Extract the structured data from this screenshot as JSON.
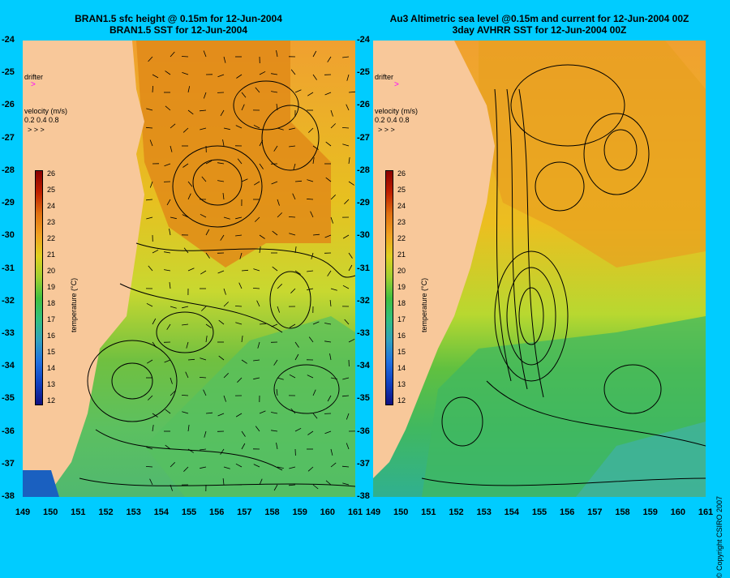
{
  "left": {
    "title1": "BRAN1.5 sfc height @ 0.15m for 12-Jun-2004",
    "title2": "BRAN1.5 SST for 12-Jun-2004"
  },
  "right": {
    "title1": "Au3 Altimetric sea level  @0.15m and current for 12-Jun-2004 00Z",
    "title2": "3day AVHRR SST for 12-Jun-2004 00Z"
  },
  "legend": {
    "drifter": "drifter",
    "velocity": "velocity (m/s)",
    "velocity_scale": "0.2 0.4 0.8",
    "temperature": "temperature (°C)"
  },
  "colorbar_ticks": [
    "26",
    "25",
    "24",
    "23",
    "22",
    "21",
    "20",
    "19",
    "18",
    "17",
    "16",
    "15",
    "14",
    "13",
    "12"
  ],
  "lat_ticks": [
    "-24",
    "-25",
    "-26",
    "-27",
    "-28",
    "-29",
    "-30",
    "-31",
    "-32",
    "-33",
    "-34",
    "-35",
    "-36",
    "-37",
    "-38"
  ],
  "lon_ticks_left": [
    "149",
    "150",
    "151",
    "152",
    "153",
    "154",
    "155",
    "156",
    "157",
    "158",
    "159",
    "160",
    "161"
  ],
  "lon_ticks_right": [
    "149",
    "150",
    "151",
    "152",
    "153",
    "154",
    "155",
    "156",
    "157",
    "158",
    "159",
    "160",
    "161"
  ],
  "copyright": "© Copyright CSIRO 2007",
  "colors": {
    "background": "#00ccff",
    "land": "#f8c89a",
    "drifter": "#ff00ff"
  }
}
